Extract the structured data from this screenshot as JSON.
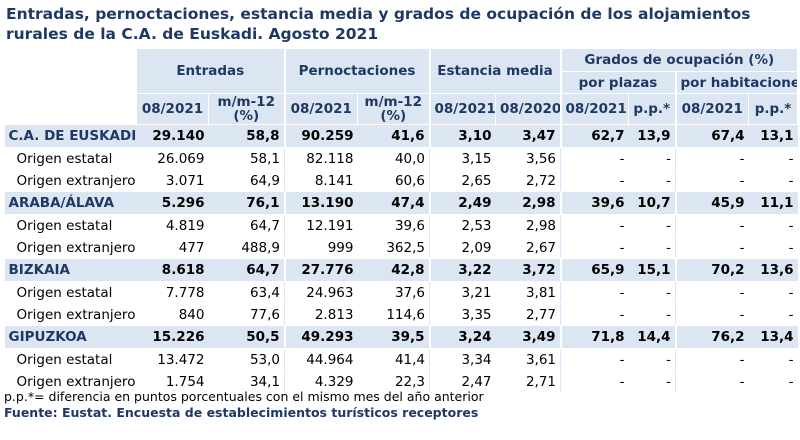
{
  "title": "Entradas, pernoctaciones, estancia media y grados de ocupación de los alojamientos rurales de la C.A. de Euskadi. Agosto 2021",
  "headers": {
    "entradas": "Entradas",
    "pernoctaciones": "Pernoctaciones",
    "estancia_media": "Estancia media",
    "grados": "Grados de ocupación (%)",
    "por_plazas": "por plazas",
    "por_habitaciones": "por habitaciones",
    "cols": [
      "08/2021",
      "m/m-12 (%)",
      "08/2021",
      "m/m-12 (%)",
      "08/2021",
      "08/2020",
      "08/2021",
      "p.p.*",
      "08/2021",
      "p.p.*"
    ]
  },
  "rows": [
    {
      "type": "main",
      "label": "C.A. DE EUSKADI",
      "values": [
        "29.140",
        "58,8",
        "90.259",
        "41,6",
        "3,10",
        "3,47",
        "62,7",
        "13,9",
        "67,4",
        "13,1"
      ]
    },
    {
      "type": "sub",
      "label": "Origen estatal",
      "values": [
        "26.069",
        "58,1",
        "82.118",
        "40,0",
        "3,15",
        "3,56",
        "-",
        "-",
        "-",
        "-"
      ]
    },
    {
      "type": "sub",
      "label": "Origen extranjero",
      "values": [
        "3.071",
        "64,9",
        "8.141",
        "60,6",
        "2,65",
        "2,72",
        "-",
        "-",
        "-",
        "-"
      ]
    },
    {
      "type": "main",
      "label": "ARABA/ÁLAVA",
      "values": [
        "5.296",
        "76,1",
        "13.190",
        "47,4",
        "2,49",
        "2,98",
        "39,6",
        "10,7",
        "45,9",
        "11,1"
      ]
    },
    {
      "type": "sub",
      "label": "Origen estatal",
      "values": [
        "4.819",
        "64,7",
        "12.191",
        "39,6",
        "2,53",
        "2,98",
        "-",
        "-",
        "-",
        "-"
      ]
    },
    {
      "type": "sub",
      "label": "Origen extranjero",
      "values": [
        "477",
        "488,9",
        "999",
        "362,5",
        "2,09",
        "2,67",
        "-",
        "-",
        "-",
        "-"
      ]
    },
    {
      "type": "main",
      "label": "BIZKAIA",
      "values": [
        "8.618",
        "64,7",
        "27.776",
        "42,8",
        "3,22",
        "3,72",
        "65,9",
        "15,1",
        "70,2",
        "13,6"
      ]
    },
    {
      "type": "sub",
      "label": "Origen estatal",
      "values": [
        "7.778",
        "63,4",
        "24.963",
        "37,6",
        "3,21",
        "3,81",
        "-",
        "-",
        "-",
        "-"
      ]
    },
    {
      "type": "sub",
      "label": "Origen extranjero",
      "values": [
        "840",
        "77,6",
        "2.813",
        "114,6",
        "3,35",
        "2,77",
        "-",
        "-",
        "-",
        "-"
      ]
    },
    {
      "type": "main",
      "label": "GIPUZKOA",
      "values": [
        "15.226",
        "50,5",
        "49.293",
        "39,5",
        "3,24",
        "3,49",
        "71,8",
        "14,4",
        "76,2",
        "13,4"
      ]
    },
    {
      "type": "sub",
      "label": "Origen estatal",
      "values": [
        "13.472",
        "53,0",
        "44.964",
        "41,4",
        "3,34",
        "3,61",
        "-",
        "-",
        "-",
        "-"
      ]
    },
    {
      "type": "sub",
      "label": "Origen extranjero",
      "values": [
        "1.754",
        "34,1",
        "4.329",
        "22,3",
        "2,47",
        "2,71",
        "-",
        "-",
        "-",
        "-"
      ]
    }
  ],
  "note": "p.p.*= diferencia en puntos porcentuales con el mismo mes del año anterior",
  "source": "Fuente: Eustat. Encuesta de establecimientos turísticos receptores",
  "colors": {
    "header_bg": "#dce6f2",
    "title": "#1f3864"
  }
}
